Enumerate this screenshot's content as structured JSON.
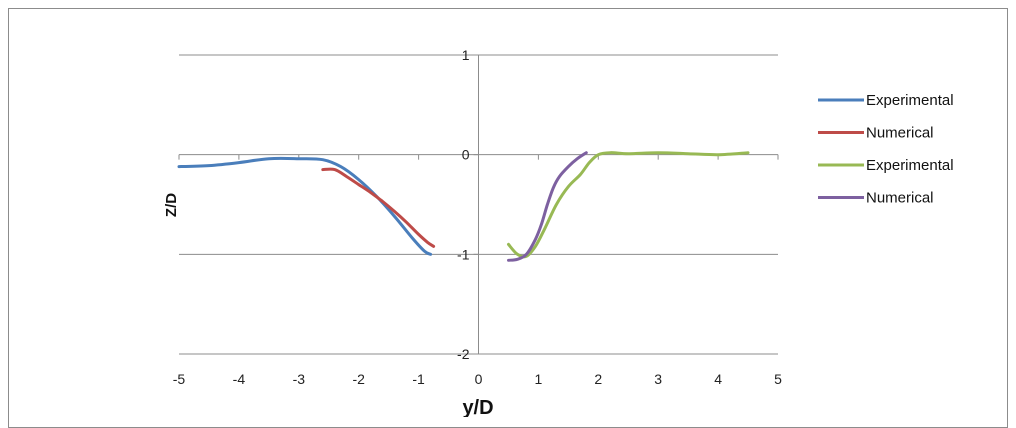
{
  "chart_data": {
    "type": "line",
    "title": "",
    "xlabel": "y/D",
    "ylabel": "Z/D",
    "xlim": [
      -5,
      5
    ],
    "ylim": [
      -2,
      1
    ],
    "x_ticks": [
      -5,
      -4,
      -3,
      -2,
      -1,
      0,
      1,
      2,
      3,
      4,
      5
    ],
    "y_ticks": [
      1,
      0,
      -1,
      -2
    ],
    "x_tick_labels": [
      "-5",
      "-4",
      "-3",
      "-2",
      "-1",
      "0",
      "1",
      "2",
      "3",
      "4",
      "5"
    ],
    "y_tick_labels": [
      "1",
      "0",
      "-1",
      "-2"
    ],
    "grid": "horizontal",
    "legend_position": "right",
    "series": [
      {
        "name": "Experimental",
        "color": "#4a7ebb",
        "x": [
          -5.0,
          -4.5,
          -4.0,
          -3.5,
          -3.0,
          -2.6,
          -2.3,
          -2.0,
          -1.7,
          -1.4,
          -1.1,
          -0.9,
          -0.8
        ],
        "y": [
          -0.12,
          -0.11,
          -0.08,
          -0.04,
          -0.04,
          -0.05,
          -0.12,
          -0.25,
          -0.42,
          -0.62,
          -0.84,
          -0.97,
          -1.0
        ]
      },
      {
        "name": "Numerical",
        "color": "#be4b48",
        "x": [
          -2.6,
          -2.4,
          -2.2,
          -2.0,
          -1.8,
          -1.6,
          -1.4,
          -1.2,
          -1.0,
          -0.85,
          -0.75
        ],
        "y": [
          -0.15,
          -0.15,
          -0.22,
          -0.3,
          -0.38,
          -0.47,
          -0.57,
          -0.68,
          -0.8,
          -0.88,
          -0.92
        ]
      },
      {
        "name": "Experimental",
        "color": "#98b954",
        "x": [
          0.5,
          0.65,
          0.8,
          0.95,
          1.1,
          1.3,
          1.5,
          1.7,
          1.85,
          2.0,
          2.2,
          2.5,
          3.0,
          3.5,
          4.0,
          4.5
        ],
        "y": [
          -0.9,
          -1.0,
          -1.02,
          -0.92,
          -0.75,
          -0.5,
          -0.32,
          -0.2,
          -0.08,
          0.0,
          0.02,
          0.01,
          0.02,
          0.01,
          0.0,
          0.02
        ]
      },
      {
        "name": "Numerical",
        "color": "#7d60a0",
        "x": [
          0.5,
          0.65,
          0.8,
          0.95,
          1.05,
          1.15,
          1.25,
          1.35,
          1.5,
          1.65,
          1.8
        ],
        "y": [
          -1.06,
          -1.05,
          -1.0,
          -0.85,
          -0.7,
          -0.5,
          -0.33,
          -0.22,
          -0.12,
          -0.04,
          0.02
        ]
      }
    ]
  }
}
